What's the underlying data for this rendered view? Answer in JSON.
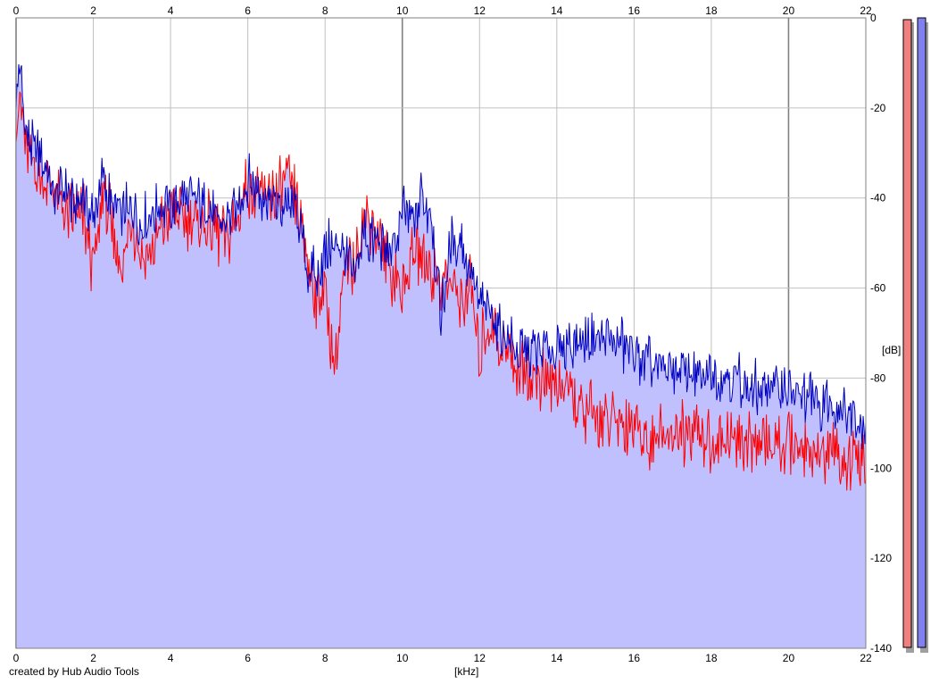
{
  "credit": "created by Hub Audio Tools",
  "chart_data": {
    "type": "area",
    "title": "",
    "xlabel": "[kHz]",
    "ylabel": "[dB]",
    "xlim": [
      0,
      22
    ],
    "ylim": [
      -140,
      0
    ],
    "x_ticks": [
      0,
      2,
      4,
      6,
      8,
      10,
      12,
      14,
      16,
      18,
      20,
      22
    ],
    "y_ticks": [
      0,
      -20,
      -40,
      -60,
      -80,
      -100,
      -120,
      -140
    ],
    "grid": true,
    "colors": {
      "fill": "#c0c0ff",
      "blue_line": "#0000c0",
      "red_line": "#ff0000",
      "red_overlap_fill": "#ffc0c8",
      "grid": "#c0c0c0",
      "major_grid": "#808080",
      "meter_red": "#f08080",
      "meter_blue": "#8080f0"
    },
    "x": [
      0,
      0.1,
      0.2,
      0.35,
      0.5,
      0.75,
      1,
      1.25,
      1.5,
      1.75,
      2,
      2.25,
      2.5,
      2.75,
      3,
      3.25,
      3.5,
      3.75,
      4,
      4.25,
      4.5,
      4.75,
      5,
      5.25,
      5.5,
      5.75,
      6,
      6.25,
      6.5,
      6.75,
      7,
      7.25,
      7.5,
      7.75,
      8,
      8.25,
      8.5,
      8.75,
      9,
      9.25,
      9.5,
      9.75,
      10,
      10.25,
      10.5,
      10.75,
      11,
      11.25,
      11.5,
      11.75,
      12,
      12.25,
      12.5,
      12.75,
      13,
      13.5,
      14,
      14.5,
      15,
      15.5,
      16,
      16.5,
      17,
      17.5,
      18,
      18.5,
      19,
      19.5,
      20,
      20.5,
      21,
      21.5,
      22
    ],
    "series": [
      {
        "values": [
          -18,
          -10,
          -22,
          -28,
          -30,
          -33,
          -40,
          -38,
          -42,
          -40,
          -44,
          -36,
          -42,
          -44,
          -42,
          -46,
          -44,
          -42,
          -42,
          -40,
          -40,
          -42,
          -43,
          -45,
          -44,
          -42,
          -36,
          -38,
          -40,
          -42,
          -42,
          -42,
          -54,
          -58,
          -52,
          -50,
          -52,
          -58,
          -48,
          -50,
          -50,
          -52,
          -44,
          -44,
          -40,
          -44,
          -66,
          -50,
          -50,
          -56,
          -64,
          -66,
          -68,
          -72,
          -74,
          -74,
          -74,
          -72,
          -70,
          -72,
          -74,
          -78,
          -78,
          -80,
          -80,
          -80,
          -82,
          -82,
          -83,
          -84,
          -86,
          -87,
          -90
        ]
      },
      {
        "values": [
          -20,
          -18,
          -25,
          -32,
          -34,
          -36,
          -40,
          -42,
          -44,
          -44,
          -56,
          -38,
          -48,
          -56,
          -44,
          -52,
          -52,
          -46,
          -42,
          -44,
          -44,
          -46,
          -45,
          -48,
          -48,
          -44,
          -38,
          -40,
          -40,
          -38,
          -36,
          -40,
          -52,
          -62,
          -60,
          -78,
          -56,
          -54,
          -46,
          -44,
          -52,
          -56,
          -62,
          -52,
          -52,
          -56,
          -58,
          -60,
          -62,
          -60,
          -74,
          -68,
          -72,
          -74,
          -78,
          -80,
          -82,
          -86,
          -88,
          -90,
          -90,
          -94,
          -92,
          -94,
          -94,
          -94,
          -94,
          -95,
          -95,
          -96,
          -97,
          -98,
          -100
        ]
      }
    ]
  }
}
